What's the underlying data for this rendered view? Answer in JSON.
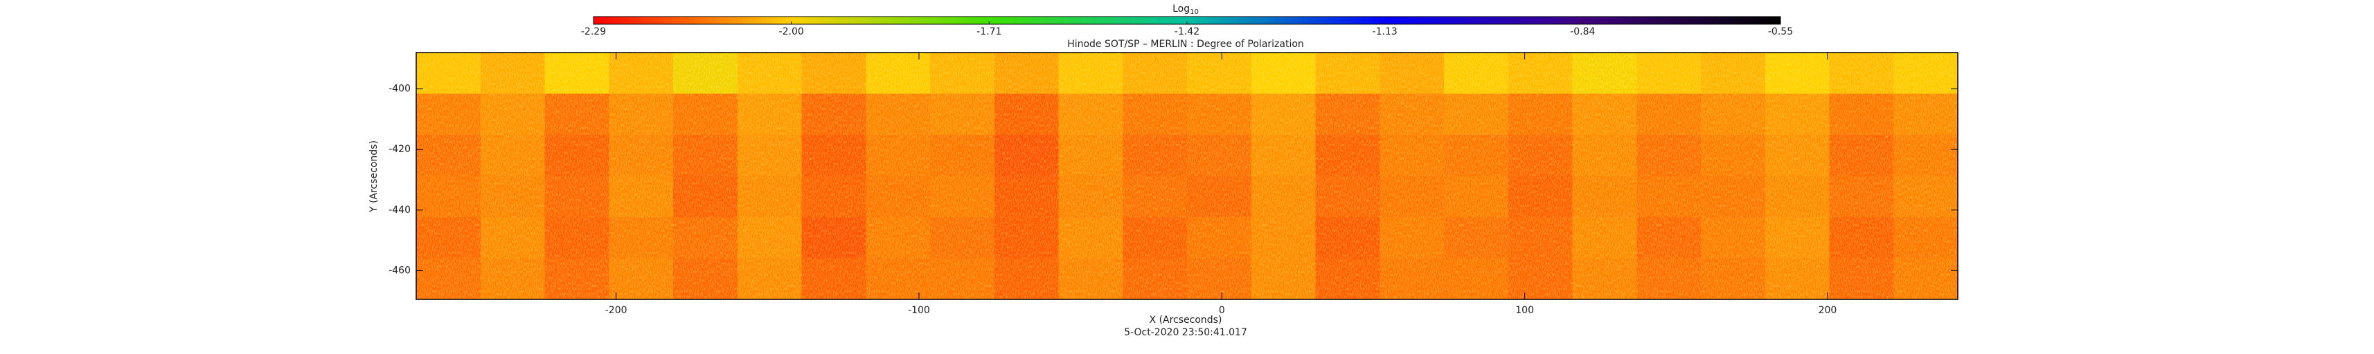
{
  "chart_data": {
    "type": "heatmap",
    "title": "Hinode SOT/SP – MERLIN : Degree of Polarization",
    "x_label": "X (Arcseconds)",
    "y_label": "Y (Arcseconds)",
    "footer": "5-Oct-2020 23:50:41.017",
    "colorbar_title": "Log",
    "colorbar_title_subscript": "10",
    "colormap": [
      "#ff0000",
      "#ffd000",
      "#40e000",
      "#00c0a0",
      "#0000ff",
      "#400080",
      "#000000"
    ],
    "zlim": [
      -2.29,
      -0.55
    ],
    "zticks": [
      -2.29,
      {
        "value": -2,
        "label": "-2.00"
      },
      -1.71,
      -1.42,
      -1.13,
      -0.84,
      -0.55
    ],
    "xlim": [
      -266,
      243
    ],
    "ylim": [
      -469.5,
      -388
    ],
    "xticks": [
      -200,
      -100,
      0,
      100,
      200
    ],
    "yticks": [
      -460,
      -440,
      -420,
      -400
    ],
    "z": [
      [
        -2.02,
        -2.05,
        -2.0,
        -2.04,
        -1.98,
        -2.03,
        -2.06,
        -2.01,
        -2.04,
        -2.07,
        -2.02,
        -2.05,
        -2.03,
        -2.0,
        -2.04,
        -2.06,
        -2.01,
        -2.03,
        -1.99,
        -2.02,
        -2.04,
        -2.0,
        -2.03,
        -2.01
      ],
      [
        -2.12,
        -2.09,
        -2.14,
        -2.1,
        -2.13,
        -2.08,
        -2.15,
        -2.11,
        -2.1,
        -2.16,
        -2.09,
        -2.13,
        -2.12,
        -2.08,
        -2.14,
        -2.11,
        -2.1,
        -2.13,
        -2.09,
        -2.12,
        -2.1,
        -2.08,
        -2.13,
        -2.1
      ],
      [
        -2.14,
        -2.1,
        -2.16,
        -2.11,
        -2.15,
        -2.09,
        -2.17,
        -2.12,
        -2.13,
        -2.18,
        -2.1,
        -2.15,
        -2.14,
        -2.09,
        -2.16,
        -2.12,
        -2.13,
        -2.15,
        -2.1,
        -2.14,
        -2.12,
        -2.09,
        -2.15,
        -2.12
      ],
      [
        -2.13,
        -2.11,
        -2.15,
        -2.1,
        -2.16,
        -2.1,
        -2.16,
        -2.13,
        -2.12,
        -2.17,
        -2.11,
        -2.14,
        -2.15,
        -2.1,
        -2.15,
        -2.13,
        -2.12,
        -2.16,
        -2.11,
        -2.13,
        -2.13,
        -2.1,
        -2.14,
        -2.11
      ],
      [
        -2.15,
        -2.1,
        -2.16,
        -2.12,
        -2.14,
        -2.09,
        -2.18,
        -2.12,
        -2.14,
        -2.17,
        -2.1,
        -2.16,
        -2.13,
        -2.1,
        -2.17,
        -2.12,
        -2.14,
        -2.15,
        -2.1,
        -2.15,
        -2.12,
        -2.09,
        -2.16,
        -2.13
      ],
      [
        -2.14,
        -2.11,
        -2.15,
        -2.11,
        -2.15,
        -2.1,
        -2.16,
        -2.13,
        -2.13,
        -2.16,
        -2.11,
        -2.15,
        -2.14,
        -2.1,
        -2.16,
        -2.13,
        -2.13,
        -2.15,
        -2.11,
        -2.14,
        -2.13,
        -2.1,
        -2.15,
        -2.12
      ]
    ]
  }
}
